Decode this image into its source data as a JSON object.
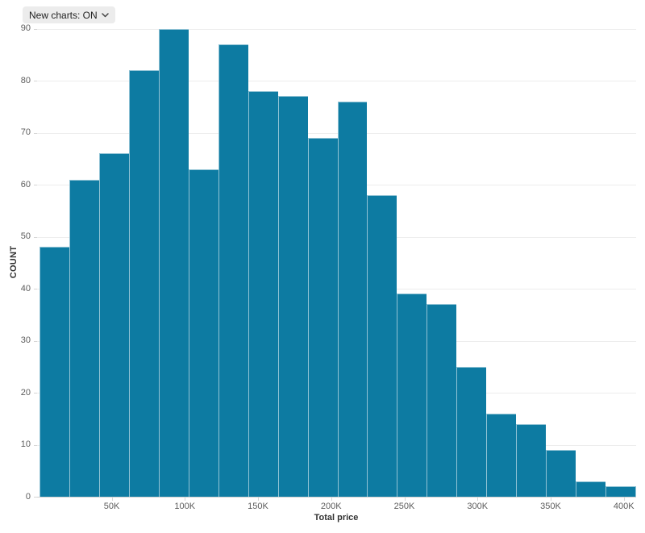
{
  "toolbar": {
    "new_charts_label": "New charts: ON"
  },
  "chart_data": {
    "type": "bar",
    "subtype": "histogram",
    "title": "",
    "xlabel": "Total price",
    "ylabel": "COUNT",
    "ylim": [
      0,
      90
    ],
    "grid": "horizontal",
    "legend": "none",
    "n_bins": 20,
    "bin_start_price": 0,
    "bin_width_price": 20000,
    "values": [
      48,
      61,
      66,
      82,
      90,
      63,
      87,
      78,
      77,
      69,
      76,
      58,
      39,
      37,
      25,
      16,
      14,
      9,
      3,
      2
    ],
    "y_ticks": [
      0,
      10,
      20,
      30,
      40,
      50,
      60,
      70,
      80,
      90
    ],
    "x_tick_labels": [
      "50K",
      "100K",
      "150K",
      "200K",
      "250K",
      "300K",
      "350K",
      "400K"
    ],
    "x_tick_values": [
      50000,
      100000,
      150000,
      200000,
      250000,
      300000,
      350000,
      400000
    ],
    "colors": {
      "bar_fill": "#0d7ba2",
      "bar_stroke": "rgba(255,255,255,0.55)",
      "gridline": "#ededed",
      "axis_line": "#cfcfcf",
      "tick_text": "#5c5c5c",
      "axis_title_text": "#333333",
      "pill_background": "#ececec",
      "pill_text": "#222222"
    }
  }
}
